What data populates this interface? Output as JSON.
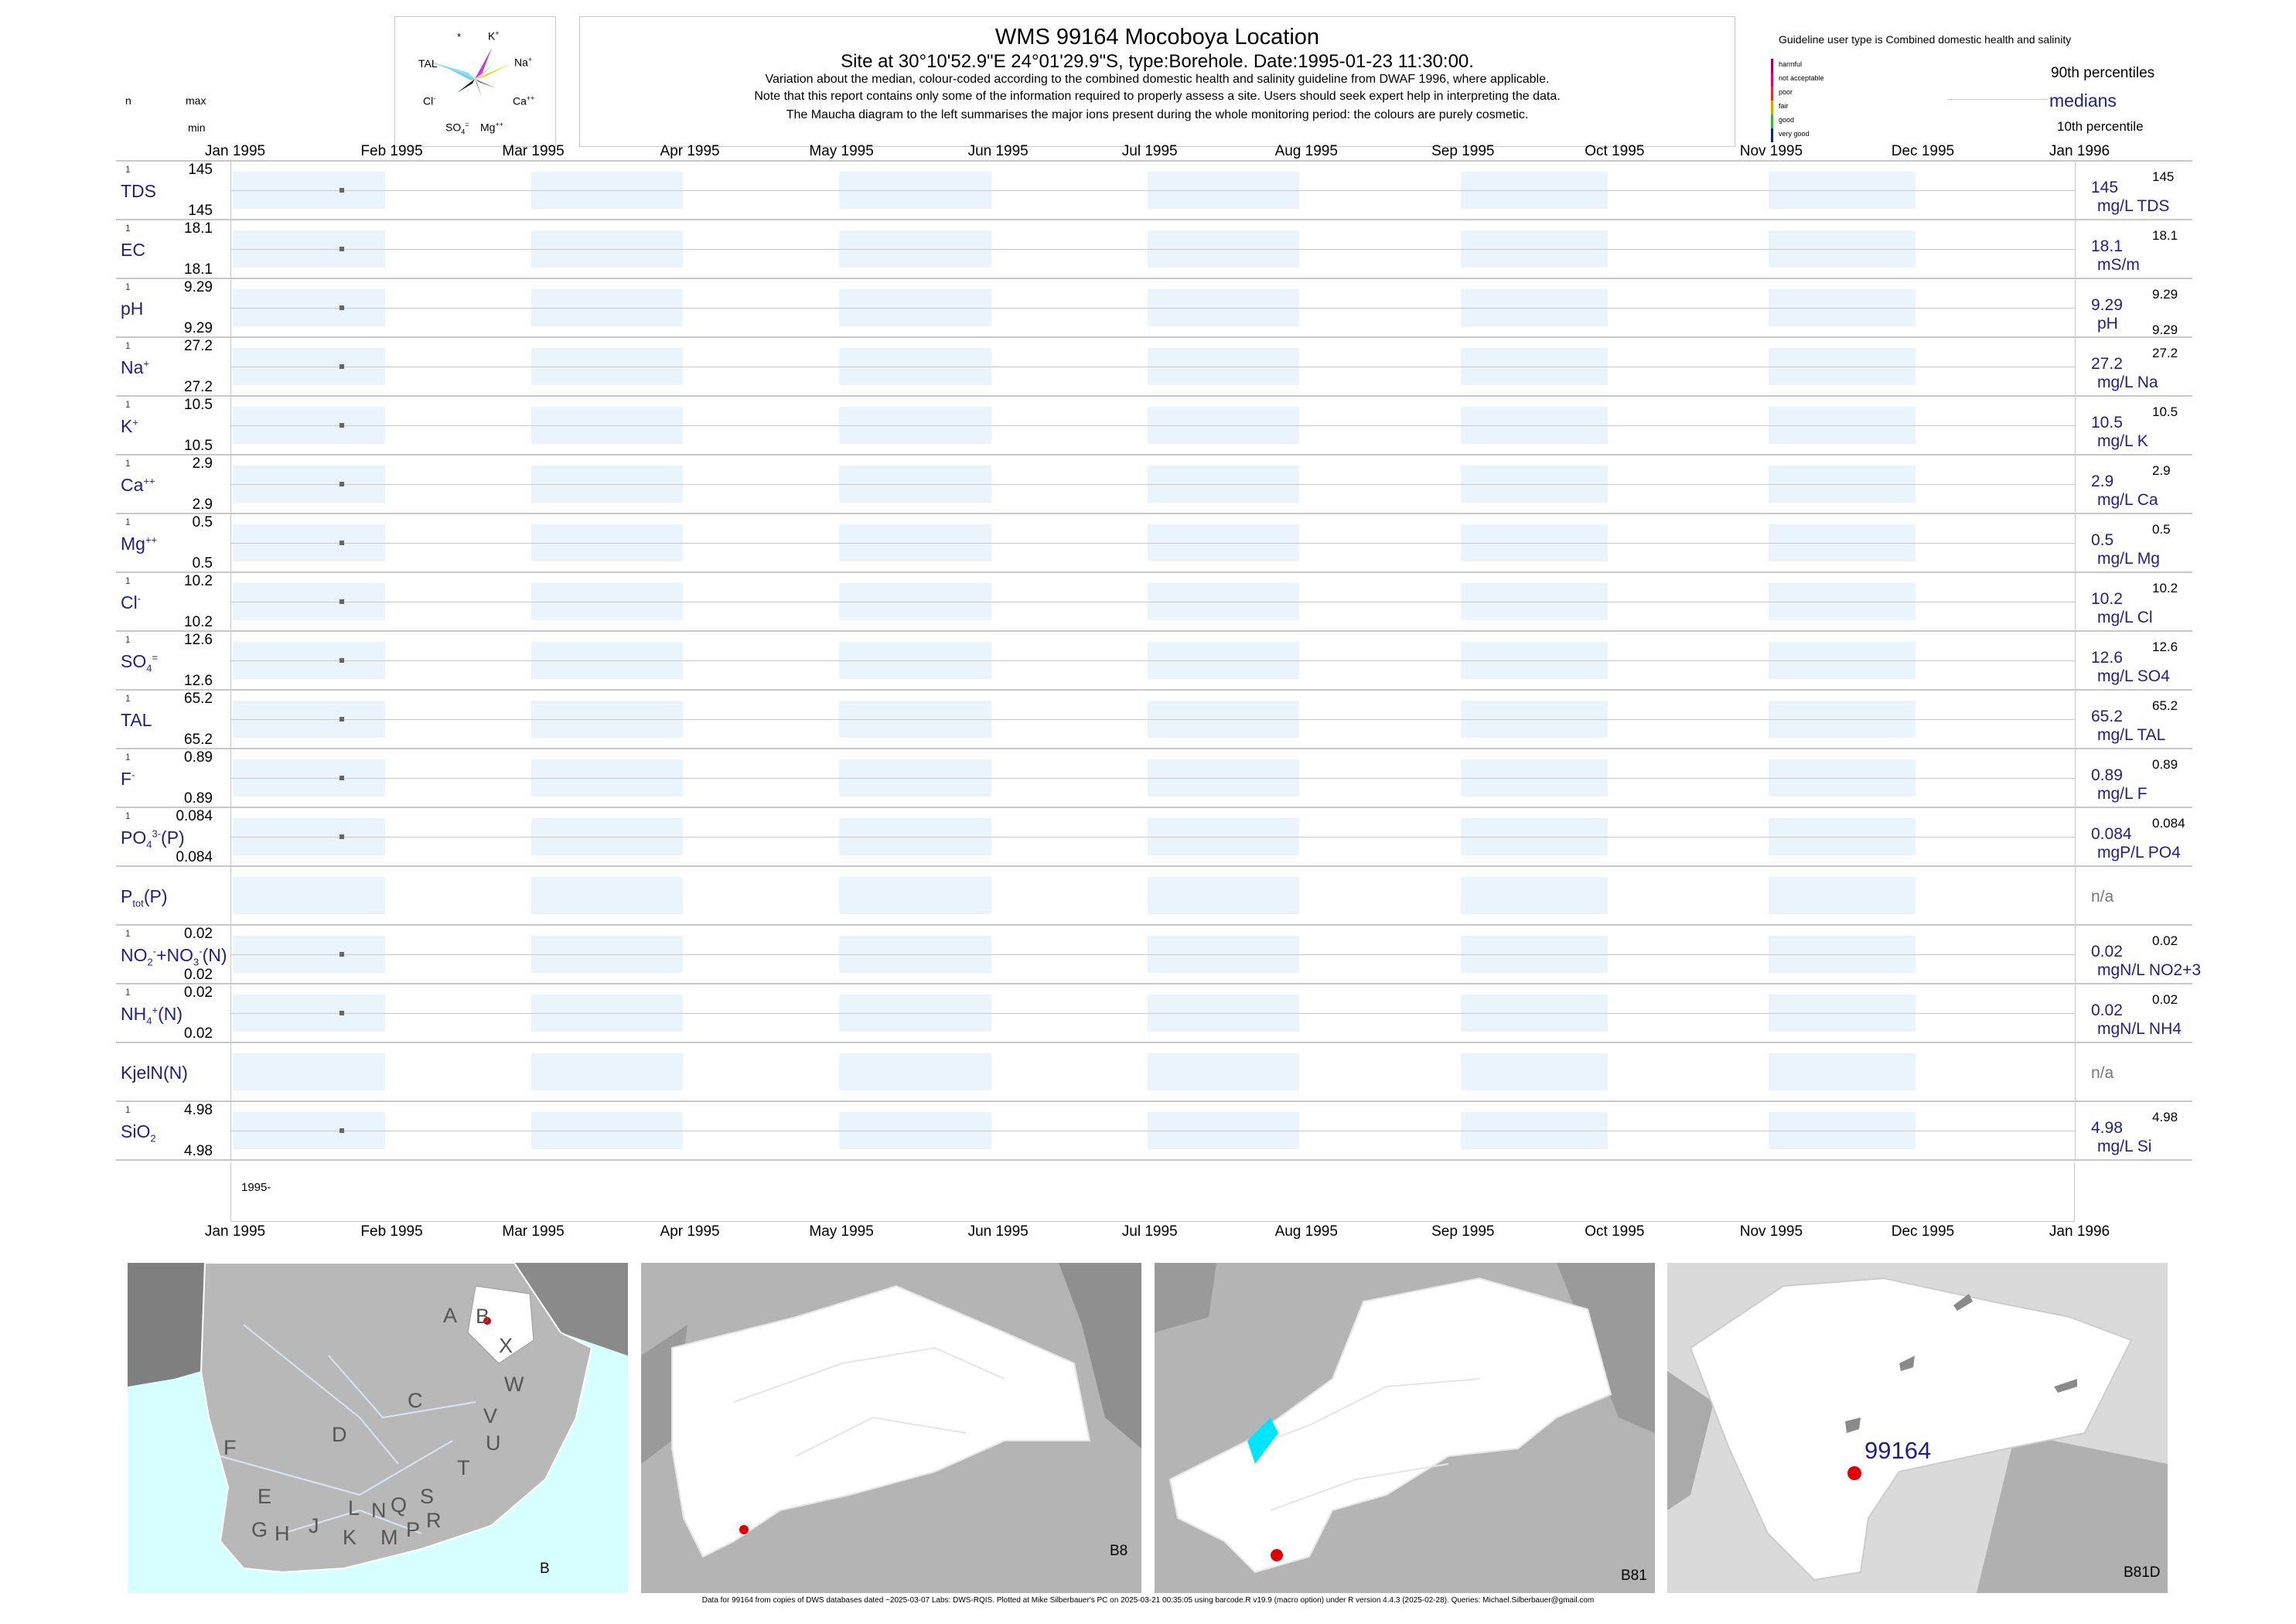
{
  "header": {
    "title": "WMS 99164  Mocoboya Location",
    "subtitle": "Site at 30°10'52.9\"E 24°01'29.9\"S, type:Borehole. Date:1995-01-23 11:30:00.",
    "note1": "Variation about the median,  colour-coded according to the combined domestic health and salinity guideline from DWAF 1996, where applicable.",
    "note2": "Note that this report contains only some of the information required to properly assess a site. Users should seek expert help in interpreting the data.",
    "note3": "The Maucha diagram to the left summarises the major ions present during the whole monitoring period: the colours are purely cosmetic."
  },
  "maucha": {
    "labels": [
      "*",
      "K+",
      "TAL",
      "Na+",
      "Cl-",
      "Ca++",
      "SO4=",
      "Mg++"
    ]
  },
  "left_header": {
    "n": "n",
    "max": "max",
    "min": "min"
  },
  "guideline": {
    "title": "Guideline user type is Combined domestic health and salinity",
    "classes": [
      "harmful",
      "not acceptable",
      "poor",
      "fair",
      "good",
      "very good"
    ],
    "class_colors": [
      "#a0006e",
      "#e0006e",
      "#e03030",
      "#e0a000",
      "#40b040",
      "#1020a0"
    ],
    "p90": "90th percentiles",
    "medians": "medians",
    "p10": "10th percentile"
  },
  "chart_data": {
    "type": "scatter",
    "x_axis": {
      "ticks": [
        "Jan 1995",
        "Feb 1995",
        "Mar 1995",
        "Apr 1995",
        "May 1995",
        "Jun 1995",
        "Jul 1995",
        "Aug 1995",
        "Sep 1995",
        "Oct 1995",
        "Nov 1995",
        "Dec 1995",
        "Jan 1996"
      ],
      "range": [
        "1995-01-01",
        "1996-01-01"
      ],
      "year_label": "1995-"
    },
    "sample_date": "1995-01-23",
    "series": [
      {
        "label": "TDS",
        "n": "1",
        "max": "145",
        "min": "145",
        "median": "145",
        "unit": "mg/L TDS",
        "p90": "145",
        "p10": ""
      },
      {
        "label": "EC",
        "n": "1",
        "max": "18.1",
        "min": "18.1",
        "median": "18.1",
        "unit": "mS/m",
        "p90": "18.1",
        "p10": ""
      },
      {
        "label": "pH",
        "n": "1",
        "max": "9.29",
        "min": "9.29",
        "median": "9.29",
        "unit": "pH",
        "p90": "9.29",
        "p10": "9.29"
      },
      {
        "label": "Na+",
        "n": "1",
        "max": "27.2",
        "min": "27.2",
        "median": "27.2",
        "unit": "mg/L Na",
        "p90": "27.2",
        "p10": ""
      },
      {
        "label": "K+",
        "n": "1",
        "max": "10.5",
        "min": "10.5",
        "median": "10.5",
        "unit": "mg/L K",
        "p90": "10.5",
        "p10": ""
      },
      {
        "label": "Ca++",
        "n": "1",
        "max": "2.9",
        "min": "2.9",
        "median": "2.9",
        "unit": "mg/L Ca",
        "p90": "2.9",
        "p10": ""
      },
      {
        "label": "Mg++",
        "n": "1",
        "max": "0.5",
        "min": "0.5",
        "median": "0.5",
        "unit": "mg/L Mg",
        "p90": "0.5",
        "p10": ""
      },
      {
        "label": "Cl-",
        "n": "1",
        "max": "10.2",
        "min": "10.2",
        "median": "10.2",
        "unit": "mg/L Cl",
        "p90": "10.2",
        "p10": ""
      },
      {
        "label": "SO4=",
        "n": "1",
        "max": "12.6",
        "min": "12.6",
        "median": "12.6",
        "unit": "mg/L SO4",
        "p90": "12.6",
        "p10": ""
      },
      {
        "label": "TAL",
        "n": "1",
        "max": "65.2",
        "min": "65.2",
        "median": "65.2",
        "unit": "mg/L TAL",
        "p90": "65.2",
        "p10": ""
      },
      {
        "label": "F-",
        "n": "1",
        "max": "0.89",
        "min": "0.89",
        "median": "0.89",
        "unit": "mg/L F",
        "p90": "0.89",
        "p10": ""
      },
      {
        "label": "PO43-(P)",
        "n": "1",
        "max": "0.084",
        "min": "0.084",
        "median": "0.084",
        "unit": "mgP/L PO4",
        "p90": "0.084",
        "p10": ""
      },
      {
        "label": "Ptot(P)",
        "n": "",
        "max": "",
        "min": "",
        "median": "n/a",
        "unit": "",
        "p90": "",
        "p10": ""
      },
      {
        "label": "NO2-+NO3-(N)",
        "n": "1",
        "max": "0.02",
        "min": "0.02",
        "median": "0.02",
        "unit": "mgN/L NO2+3",
        "p90": "0.02",
        "p10": ""
      },
      {
        "label": "NH4+(N)",
        "n": "1",
        "max": "0.02",
        "min": "0.02",
        "median": "0.02",
        "unit": "mgN/L NH4",
        "p90": "0.02",
        "p10": ""
      },
      {
        "label": "KjelN(N)",
        "n": "",
        "max": "",
        "min": "",
        "median": "n/a",
        "unit": "",
        "p90": "",
        "p10": ""
      },
      {
        "label": "SiO2",
        "n": "1",
        "max": "4.98",
        "min": "4.98",
        "median": "4.98",
        "unit": "mg/L Si",
        "p90": "4.98",
        "p10": ""
      }
    ]
  },
  "maps": {
    "panel1": {
      "tag": "B",
      "letters": [
        "A",
        "B",
        "X",
        "W",
        "C",
        "V",
        "U",
        "D",
        "T",
        "F",
        "E",
        "S",
        "L",
        "N",
        "Q",
        "R",
        "P",
        "M",
        "G",
        "H",
        "J",
        "K"
      ]
    },
    "panel2": {
      "tag": "B8"
    },
    "panel3": {
      "tag": "B81"
    },
    "panel4": {
      "tag": "B81D",
      "site": "99164"
    }
  },
  "footer": "Data for 99164 from copies of DWS databases dated ~2025-03-07 Labs: DWS-RQIS. Plotted at Mike Silberbauer's PC on 2025-03-21 00:35:05 using barcode.R v19.9 (macro option) under R version 4.4.3 (2025-02-28). Queries: Michael.Silberbauer@gmail.com",
  "colors": {
    "label": "#1f1f8a",
    "stripe": "#eaf4fd",
    "gridline": "#c8c8c8",
    "point": "#666666",
    "site": "#e00000",
    "sea": "#d6ffff"
  }
}
